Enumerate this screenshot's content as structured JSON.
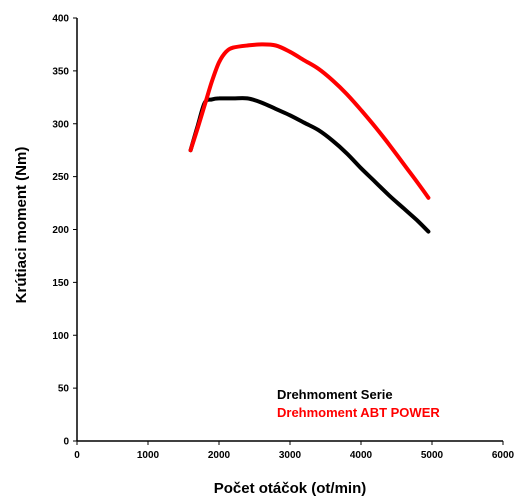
{
  "chart_data": {
    "type": "line",
    "title": "",
    "xlabel": "Počet otáčok (ot/min)",
    "ylabel": "Krútiaci moment (Nm)",
    "xlim": [
      0,
      6000
    ],
    "ylim": [
      0,
      400
    ],
    "x_ticks": [
      0,
      1000,
      2000,
      3000,
      4000,
      5000,
      6000
    ],
    "y_ticks": [
      0,
      50,
      100,
      150,
      200,
      250,
      300,
      350,
      400
    ],
    "grid": false,
    "legend_position": "bottom-right",
    "series": [
      {
        "name": "Drehmoment Serie",
        "color": "#000000",
        "points": [
          [
            1600,
            275
          ],
          [
            1700,
            298
          ],
          [
            1800,
            320
          ],
          [
            1900,
            323
          ],
          [
            2000,
            324
          ],
          [
            2200,
            324
          ],
          [
            2400,
            324
          ],
          [
            2600,
            320
          ],
          [
            2800,
            314
          ],
          [
            3000,
            308
          ],
          [
            3200,
            301
          ],
          [
            3400,
            294
          ],
          [
            3600,
            284
          ],
          [
            3800,
            272
          ],
          [
            4000,
            258
          ],
          [
            4200,
            245
          ],
          [
            4400,
            232
          ],
          [
            4600,
            220
          ],
          [
            4800,
            208
          ],
          [
            4950,
            198
          ]
        ]
      },
      {
        "name": "Drehmoment ABT POWER",
        "color": "#ff0000",
        "points": [
          [
            1600,
            275
          ],
          [
            1700,
            296
          ],
          [
            1800,
            318
          ],
          [
            1900,
            340
          ],
          [
            2000,
            358
          ],
          [
            2100,
            368
          ],
          [
            2200,
            372
          ],
          [
            2400,
            374
          ],
          [
            2600,
            375
          ],
          [
            2800,
            374
          ],
          [
            3000,
            368
          ],
          [
            3200,
            360
          ],
          [
            3400,
            352
          ],
          [
            3600,
            341
          ],
          [
            3800,
            328
          ],
          [
            4000,
            313
          ],
          [
            4200,
            297
          ],
          [
            4400,
            280
          ],
          [
            4600,
            262
          ],
          [
            4800,
            244
          ],
          [
            4950,
            230
          ]
        ]
      }
    ]
  }
}
